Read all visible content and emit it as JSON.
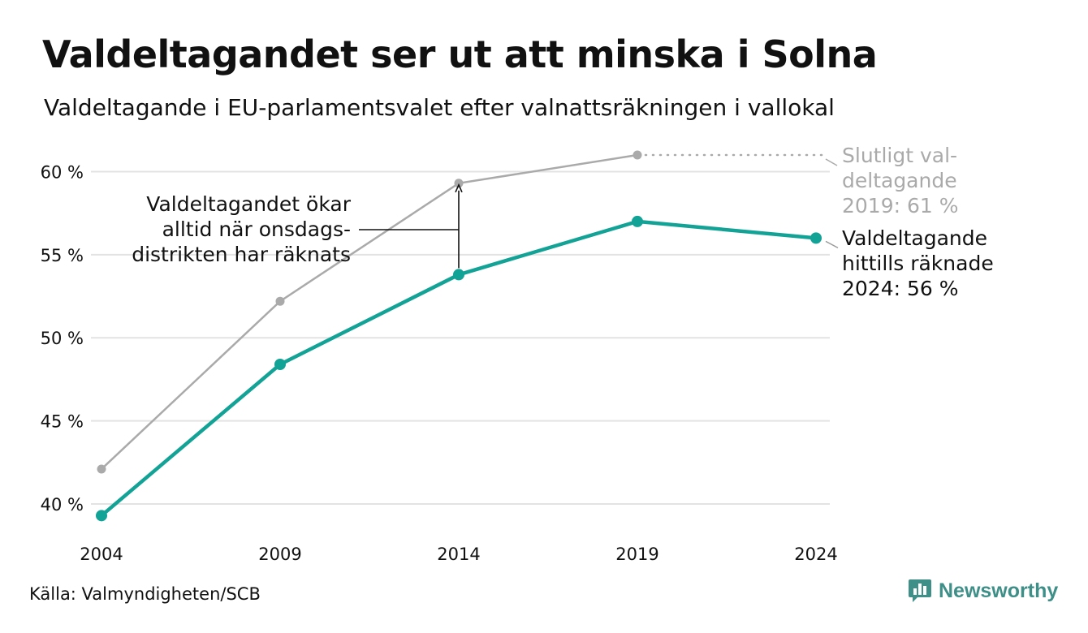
{
  "header": {
    "title": "Valdeltagandet ser ut att minska i Solna",
    "subtitle": "Valdeltagande i EU-parlamentsvalet efter valnattsräkningen i vallokal"
  },
  "footer": {
    "source": "Källa: Valmyndigheten/SCB",
    "brand": "Newsworthy",
    "brand_icon": "bar-chart-icon"
  },
  "colors": {
    "final": "#aaaaaa",
    "counted": "#13a396",
    "grid": "#e3e3e3",
    "annotation": "#111111",
    "brand": "#3e8f88"
  },
  "chart_data": {
    "type": "line",
    "x": [
      2004,
      2009,
      2014,
      2019,
      2024
    ],
    "tick_labels_x": [
      "2004",
      "2009",
      "2014",
      "2019",
      "2024"
    ],
    "ylim": [
      40,
      61
    ],
    "y_ticks": [
      40,
      45,
      50,
      55,
      60
    ],
    "tick_labels_y": [
      "40 %",
      "45 %",
      "50 %",
      "55 %",
      "60 %"
    ],
    "grid": true,
    "series": [
      {
        "key": "final",
        "values": [
          42.1,
          52.2,
          59.3,
          61.0,
          null
        ],
        "label_lines": [
          "Slutligt val-",
          "deltagande",
          "2019: 61 %"
        ]
      },
      {
        "key": "counted",
        "values": [
          39.3,
          48.4,
          53.8,
          57.0,
          56.0
        ],
        "label_lines": [
          "Valdeltagande",
          "hittills räknade",
          "2024: 56 %"
        ]
      }
    ],
    "annotation": {
      "lines": [
        "Valdeltagandet ökar",
        "alltid när onsdags-",
        "distrikten har räknats"
      ],
      "x": 2014
    }
  }
}
